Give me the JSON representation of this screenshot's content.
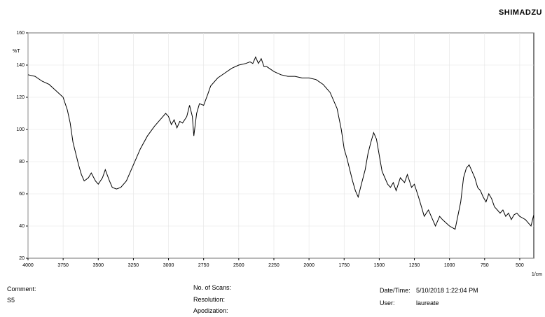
{
  "header": {
    "logo": "SHIMADZU"
  },
  "info": {
    "comment_label": "Comment:",
    "comment": "S5",
    "scans_label": "No. of Scans:",
    "resolution_label": "Resolution:",
    "apodization_label": "Apodization:",
    "datetime_label": "Date/Time:",
    "datetime": "5/10/2018 1:22:04 PM",
    "user_label": "User:",
    "user": "laureate"
  },
  "chart_data": {
    "type": "line",
    "ylabel": "%T",
    "xlabel": "1/cm",
    "color": "#000000",
    "grid": true,
    "xlim": [
      4000,
      400
    ],
    "ylim": [
      20,
      160
    ],
    "xticks": [
      4000,
      3750,
      3500,
      3250,
      3000,
      2750,
      2500,
      2250,
      2000,
      1750,
      1500,
      1250,
      1000,
      750,
      500
    ],
    "yticks": [
      20,
      40,
      60,
      80,
      100,
      120,
      140,
      160
    ],
    "x": [
      4000,
      3950,
      3900,
      3850,
      3800,
      3750,
      3720,
      3700,
      3680,
      3660,
      3640,
      3620,
      3600,
      3570,
      3550,
      3520,
      3500,
      3470,
      3450,
      3420,
      3400,
      3370,
      3340,
      3300,
      3250,
      3200,
      3150,
      3100,
      3050,
      3020,
      3000,
      2980,
      2960,
      2940,
      2920,
      2900,
      2870,
      2850,
      2830,
      2820,
      2800,
      2780,
      2750,
      2720,
      2700,
      2650,
      2600,
      2550,
      2500,
      2450,
      2420,
      2400,
      2380,
      2360,
      2340,
      2320,
      2300,
      2250,
      2200,
      2150,
      2100,
      2050,
      2000,
      1950,
      1900,
      1850,
      1800,
      1770,
      1750,
      1730,
      1710,
      1690,
      1670,
      1650,
      1630,
      1600,
      1580,
      1560,
      1540,
      1520,
      1500,
      1480,
      1460,
      1440,
      1420,
      1400,
      1380,
      1350,
      1320,
      1300,
      1270,
      1250,
      1220,
      1200,
      1180,
      1150,
      1120,
      1100,
      1070,
      1050,
      1000,
      960,
      920,
      900,
      880,
      860,
      840,
      820,
      800,
      780,
      760,
      740,
      720,
      700,
      680,
      660,
      640,
      620,
      600,
      580,
      560,
      540,
      520,
      500,
      480,
      460,
      440,
      420,
      400
    ],
    "values": [
      134,
      133,
      130,
      128,
      124,
      120,
      112,
      104,
      92,
      85,
      78,
      72,
      68,
      70,
      73,
      68,
      66,
      70,
      75,
      68,
      64,
      63,
      64,
      68,
      78,
      88,
      96,
      102,
      107,
      110,
      108,
      103,
      106,
      101,
      105,
      104,
      108,
      115,
      108,
      96,
      110,
      116,
      115,
      122,
      127,
      132,
      135,
      138,
      140,
      141,
      142,
      141,
      145,
      141,
      144,
      139,
      139,
      136,
      134,
      133,
      133,
      132,
      132,
      131,
      128,
      123,
      113,
      100,
      88,
      82,
      75,
      68,
      62,
      58,
      65,
      75,
      85,
      92,
      98,
      94,
      84,
      74,
      70,
      66,
      64,
      67,
      62,
      70,
      67,
      72,
      64,
      66,
      58,
      52,
      46,
      50,
      44,
      40,
      46,
      44,
      40,
      38,
      55,
      70,
      76,
      78,
      74,
      70,
      64,
      62,
      58,
      55,
      60,
      57,
      52,
      50,
      48,
      50,
      46,
      48,
      44,
      47,
      48,
      46,
      45,
      44,
      42,
      40,
      47
    ]
  }
}
